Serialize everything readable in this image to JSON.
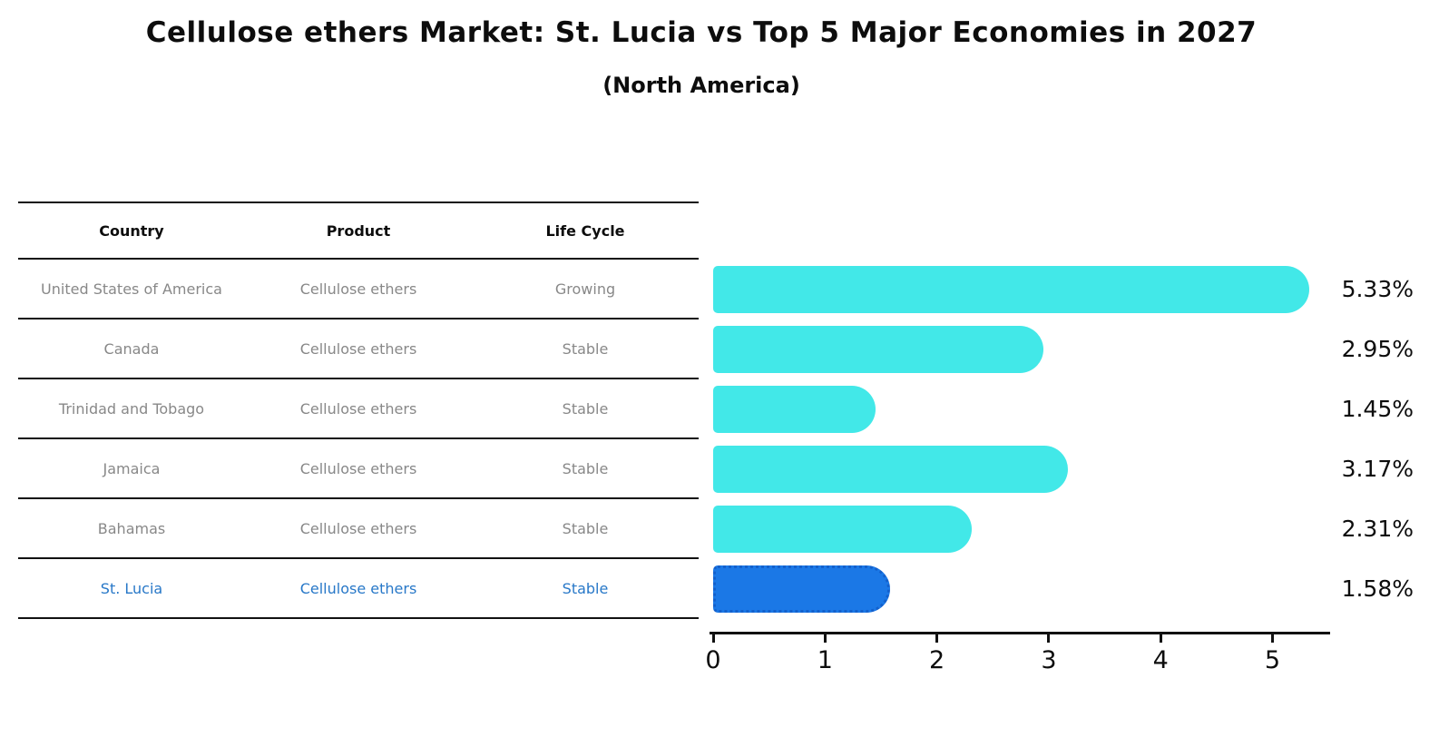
{
  "title": "Cellulose ethers Market: St. Lucia vs Top 5 Major Economies in 2027",
  "subtitle": "(North America)",
  "table": {
    "headers": [
      "Country",
      "Product",
      "Life Cycle"
    ],
    "rows": [
      {
        "country": "United States of America",
        "product": "Cellulose ethers",
        "life_cycle": "Growing"
      },
      {
        "country": "Canada",
        "product": "Cellulose ethers",
        "life_cycle": "Stable"
      },
      {
        "country": "Trinidad and Tobago",
        "product": "Cellulose ethers",
        "life_cycle": "Stable"
      },
      {
        "country": "Jamaica",
        "product": "Cellulose ethers",
        "life_cycle": "Stable"
      },
      {
        "country": "Bahamas",
        "product": "Cellulose ethers",
        "life_cycle": "Stable"
      },
      {
        "country": "St. Lucia",
        "product": "Cellulose ethers",
        "life_cycle": "Stable"
      }
    ]
  },
  "chart_data": {
    "type": "bar",
    "orientation": "horizontal",
    "title": "Cellulose ethers Market: St. Lucia vs Top 5 Major Economies in 2027",
    "subtitle": "(North America)",
    "categories": [
      "United States of America",
      "Canada",
      "Trinidad and Tobago",
      "Jamaica",
      "Bahamas",
      "St. Lucia"
    ],
    "values": [
      5.33,
      2.95,
      1.45,
      3.17,
      2.31,
      1.58
    ],
    "value_labels": [
      "5.33%",
      "2.95%",
      "1.45%",
      "3.17%",
      "2.31%",
      "1.58%"
    ],
    "x_ticks": [
      0,
      1,
      2,
      3,
      4,
      5
    ],
    "xlim": [
      0,
      5.45
    ],
    "grid": false,
    "highlight_index": 5,
    "colors": {
      "bar": "#42e8e8",
      "highlight_bar": "#1b78e6",
      "highlight_border": "#1360cc",
      "highlight_text": "#2878c8",
      "table_text": "#888888",
      "header_text": "#0d0d0d",
      "axis": "#111111"
    }
  }
}
